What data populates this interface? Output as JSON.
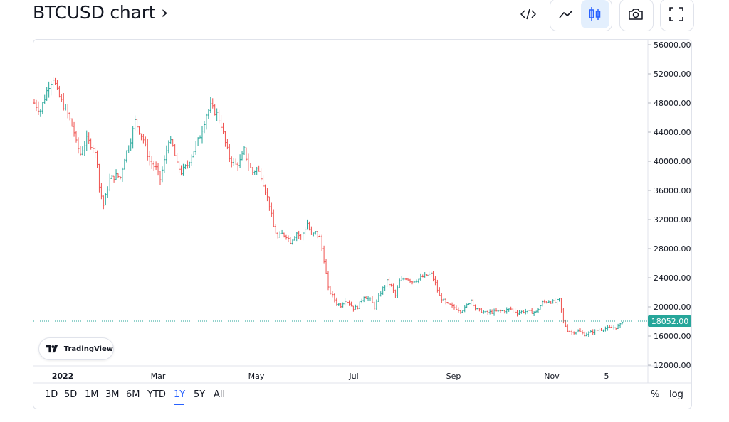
{
  "title": "BTCUSD chart ›",
  "toolbar": {
    "embed_icon": "code-icon",
    "line_icon": "line-chart-icon",
    "candles_icon": "bar-chart-icon",
    "snapshot_icon": "camera-icon",
    "fullscreen_icon": "fullscreen-icon"
  },
  "colors": {
    "up": "#26a69a",
    "down": "#ef5350",
    "last_price_bg": "#26a69a",
    "accent": "#2962ff"
  },
  "watermark": "TradingView",
  "last_price_label": "18052.00",
  "ranges": [
    "1D",
    "5D",
    "1M",
    "3M",
    "6M",
    "YTD",
    "1Y",
    "5Y",
    "All"
  ],
  "active_range": "1Y",
  "controls": {
    "percent": "%",
    "log": "log"
  },
  "chart_data": {
    "type": "bar",
    "symbol": "BTCUSD",
    "bar_style": "OHLC bars",
    "x_ticks": [
      "2022",
      "Mar",
      "May",
      "Jul",
      "Sep",
      "Nov",
      "5"
    ],
    "y_ticks": [
      "56000.00",
      "52000.00",
      "48000.00",
      "44000.00",
      "40000.00",
      "36000.00",
      "32000.00",
      "28000.00",
      "24000.00",
      "20000.00",
      "16000.00",
      "12000.00"
    ],
    "ylim": [
      12000,
      56000
    ],
    "last_price": 18052,
    "price_path": [
      [
        0,
        48000
      ],
      [
        3,
        47000
      ],
      [
        7,
        50500
      ],
      [
        9,
        51500
      ],
      [
        11,
        49500
      ],
      [
        13,
        48200
      ],
      [
        16,
        46500
      ],
      [
        19,
        44000
      ],
      [
        20,
        42500
      ],
      [
        22,
        41000
      ],
      [
        25,
        43000
      ],
      [
        28,
        42000
      ],
      [
        30,
        40000
      ],
      [
        31,
        36500
      ],
      [
        33,
        34000
      ],
      [
        36,
        37500
      ],
      [
        39,
        38000
      ],
      [
        41,
        37800
      ],
      [
        43,
        40500
      ],
      [
        46,
        43000
      ],
      [
        48,
        45500
      ],
      [
        50,
        44200
      ],
      [
        52,
        43000
      ],
      [
        55,
        40000
      ],
      [
        58,
        39000
      ],
      [
        60,
        37500
      ],
      [
        62,
        40000
      ],
      [
        64,
        43000
      ],
      [
        66,
        42000
      ],
      [
        68,
        39500
      ],
      [
        70,
        38500
      ],
      [
        73,
        39500
      ],
      [
        76,
        41500
      ],
      [
        79,
        43500
      ],
      [
        82,
        46500
      ],
      [
        84,
        47500
      ],
      [
        87,
        46500
      ],
      [
        89,
        45000
      ],
      [
        91,
        42500
      ],
      [
        93,
        40500
      ],
      [
        96,
        39500
      ],
      [
        98,
        40000
      ],
      [
        100,
        41500
      ],
      [
        102,
        39500
      ],
      [
        104,
        38500
      ],
      [
        106,
        39000
      ],
      [
        108,
        38000
      ],
      [
        110,
        36000
      ],
      [
        112,
        34000
      ],
      [
        114,
        31000
      ],
      [
        116,
        29500
      ],
      [
        118,
        30000
      ],
      [
        120,
        29800
      ],
      [
        122,
        29000
      ],
      [
        125,
        30200
      ],
      [
        127,
        29500
      ],
      [
        130,
        31500
      ],
      [
        132,
        29800
      ],
      [
        134,
        30200
      ],
      [
        136,
        29500
      ],
      [
        138,
        26500
      ],
      [
        140,
        22500
      ],
      [
        142,
        21500
      ],
      [
        144,
        20500
      ],
      [
        146,
        20200
      ],
      [
        148,
        21000
      ],
      [
        150,
        20500
      ],
      [
        152,
        19800
      ],
      [
        154,
        20000
      ],
      [
        157,
        21500
      ],
      [
        160,
        21000
      ],
      [
        162,
        20000
      ],
      [
        165,
        22000
      ],
      [
        168,
        23500
      ],
      [
        170,
        22800
      ],
      [
        172,
        21500
      ],
      [
        174,
        23500
      ],
      [
        177,
        24000
      ],
      [
        180,
        23500
      ],
      [
        183,
        23800
      ],
      [
        186,
        24300
      ],
      [
        189,
        24500
      ],
      [
        191,
        23200
      ],
      [
        193,
        21500
      ],
      [
        196,
        20500
      ],
      [
        199,
        20000
      ],
      [
        201,
        19800
      ],
      [
        203,
        19500
      ],
      [
        205,
        19800
      ],
      [
        208,
        21000
      ],
      [
        210,
        19800
      ],
      [
        212,
        19500
      ],
      [
        215,
        19200
      ],
      [
        218,
        19300
      ],
      [
        221,
        19400
      ],
      [
        224,
        19500
      ],
      [
        227,
        19700
      ],
      [
        230,
        19200
      ],
      [
        233,
        19400
      ],
      [
        236,
        19300
      ],
      [
        239,
        19300
      ],
      [
        242,
        20600
      ],
      [
        245,
        20800
      ],
      [
        248,
        20600
      ],
      [
        250,
        21000
      ],
      [
        252,
        18000
      ],
      [
        254,
        16800
      ],
      [
        256,
        16500
      ],
      [
        259,
        16700
      ],
      [
        262,
        16200
      ],
      [
        265,
        16500
      ],
      [
        268,
        16800
      ],
      [
        271,
        17000
      ],
      [
        274,
        17100
      ],
      [
        277,
        17200
      ],
      [
        279,
        17500
      ],
      [
        280,
        18052
      ]
    ]
  }
}
